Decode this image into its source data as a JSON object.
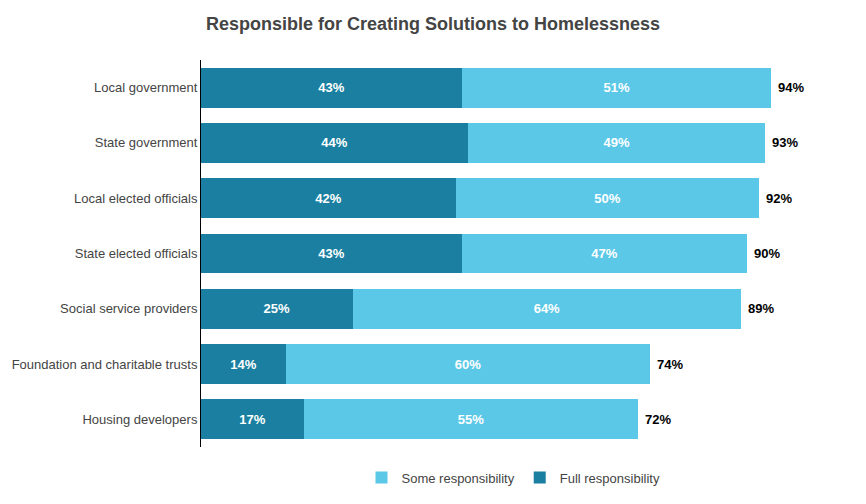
{
  "chart_data": {
    "type": "bar",
    "orientation": "horizontal",
    "stacked": true,
    "title": "Responsible for Creating Solutions to Homelessness",
    "categories": [
      "Local government",
      "State government",
      "Local elected officials",
      "State elected officials",
      "Social service providers",
      "Foundation and charitable trusts",
      "Housing developers"
    ],
    "series": [
      {
        "name": "Full responsibility",
        "color": "#1a7fa0",
        "values": [
          43,
          44,
          42,
          43,
          25,
          14,
          17
        ],
        "value_labels": [
          "43%",
          "44%",
          "42%",
          "43%",
          "25%",
          "14%",
          "17%"
        ]
      },
      {
        "name": "Some responsibility",
        "color": "#5bc8e8",
        "values": [
          51,
          49,
          50,
          47,
          64,
          60,
          55
        ],
        "value_labels": [
          "51%",
          "49%",
          "50%",
          "47%",
          "64%",
          "60%",
          "55%"
        ]
      }
    ],
    "totals": {
      "values": [
        94,
        93,
        92,
        90,
        89,
        74,
        72
      ],
      "value_labels": [
        "94%",
        "93%",
        "92%",
        "90%",
        "89%",
        "74%",
        "72%"
      ]
    },
    "xlim": [
      0,
      103
    ],
    "data_labels": true,
    "tick_labels": "y",
    "grid": false,
    "legend": "bottom"
  }
}
